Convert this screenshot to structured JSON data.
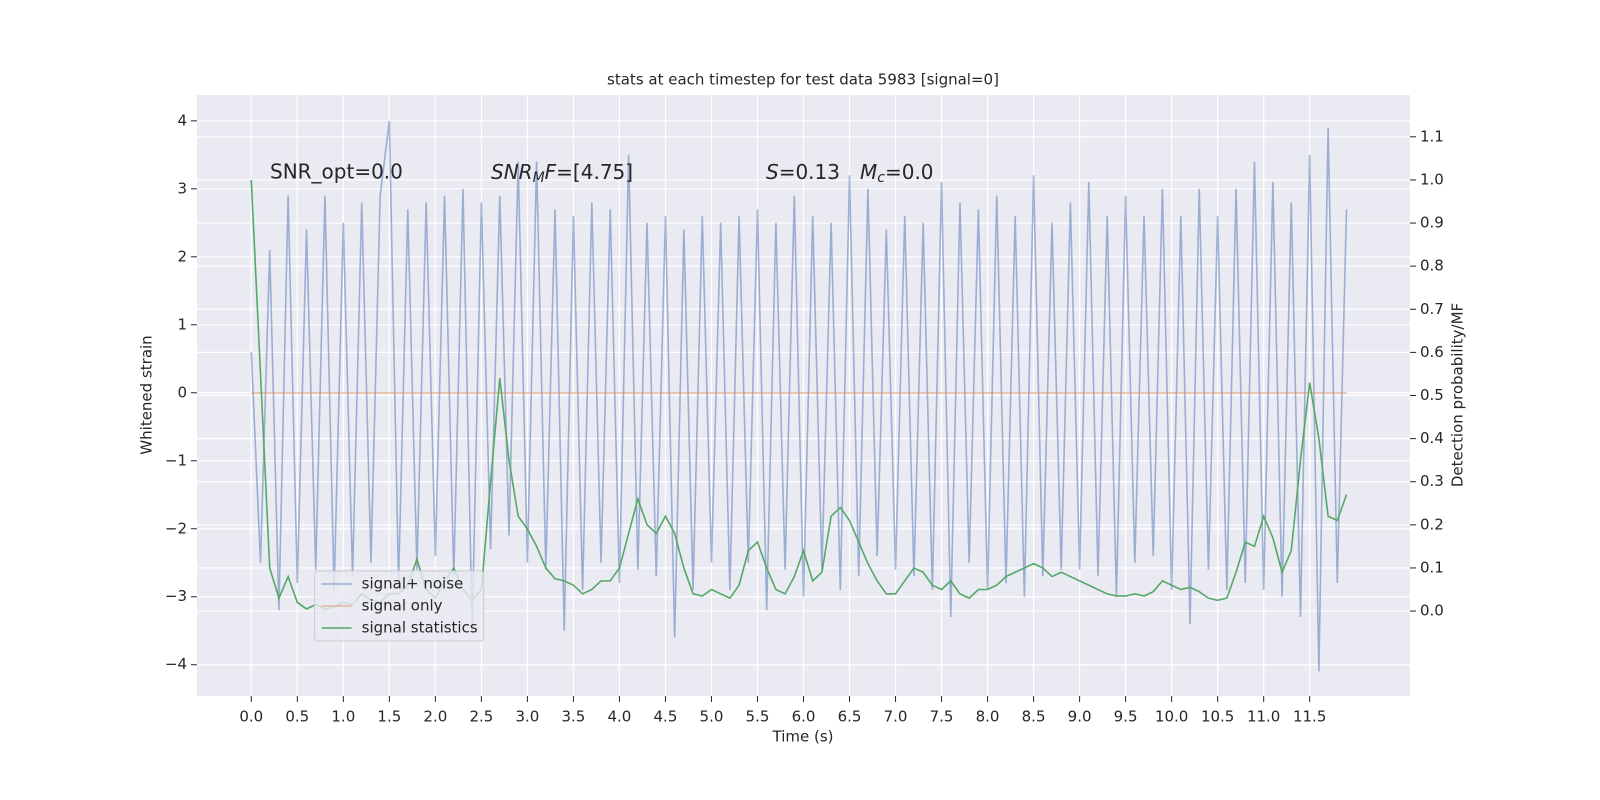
{
  "chart_data": {
    "type": "line",
    "title": "stats at each timestep for test data 5983 [signal=0]",
    "xlabel": "Time (s)",
    "ylabel": "Whitened strain",
    "y2label": "Detection probability/MF",
    "annotations": {
      "snr_opt": "SNR_opt=0.0",
      "snr_mf": [
        "SNR",
        "M",
        "F",
        "=[4.75]"
      ],
      "stats": [
        "S",
        "=0.13",
        "M",
        "c",
        "=0.0"
      ]
    },
    "grid": true,
    "legend": "lower left",
    "xlim": [
      -0.59,
      12.59
    ],
    "ylim": [
      -4.46,
      4.38
    ],
    "y2lim": [
      -0.197,
      1.197
    ],
    "xticks": [
      {
        "value": 0,
        "label": "0.0"
      },
      {
        "value": 0.5,
        "label": "0.5"
      },
      {
        "value": 1,
        "label": "1.0"
      },
      {
        "value": 1.5,
        "label": "1.5"
      },
      {
        "value": 2,
        "label": "2.0"
      },
      {
        "value": 2.5,
        "label": "2.5"
      },
      {
        "value": 3,
        "label": "3.0"
      },
      {
        "value": 3.5,
        "label": "3.5"
      },
      {
        "value": 4,
        "label": "4.0"
      },
      {
        "value": 4.5,
        "label": "4.5"
      },
      {
        "value": 5,
        "label": "5.0"
      },
      {
        "value": 5.5,
        "label": "5.5"
      },
      {
        "value": 6,
        "label": "6.0"
      },
      {
        "value": 6.5,
        "label": "6.5"
      },
      {
        "value": 7,
        "label": "7.0"
      },
      {
        "value": 7.5,
        "label": "7.5"
      },
      {
        "value": 8,
        "label": "8.0"
      },
      {
        "value": 8.5,
        "label": "8.5"
      },
      {
        "value": 9,
        "label": "9.0"
      },
      {
        "value": 9.5,
        "label": "9.5"
      },
      {
        "value": 10,
        "label": "10.0"
      },
      {
        "value": 10.5,
        "label": "10.5"
      },
      {
        "value": 11,
        "label": "11.0"
      },
      {
        "value": 11.5,
        "label": "11.5"
      }
    ],
    "yticks": [
      {
        "value": -4,
        "label": "−4"
      },
      {
        "value": -3,
        "label": "−3"
      },
      {
        "value": -2,
        "label": "−2"
      },
      {
        "value": -1,
        "label": "−1"
      },
      0,
      1,
      2,
      3,
      4
    ],
    "y2ticks": [
      {
        "value": 0,
        "label": "0.0"
      },
      {
        "value": 0.1,
        "label": "0.1"
      },
      {
        "value": 0.2,
        "label": "0.2"
      },
      {
        "value": 0.3,
        "label": "0.3"
      },
      {
        "value": 0.4,
        "label": "0.4"
      },
      {
        "value": 0.5,
        "label": "0.5"
      },
      {
        "value": 0.6,
        "label": "0.6"
      },
      {
        "value": 0.7,
        "label": "0.7"
      },
      {
        "value": 0.8,
        "label": "0.8"
      },
      {
        "value": 0.9,
        "label": "0.9"
      },
      {
        "value": 1,
        "label": "1.0"
      },
      {
        "value": 1.1,
        "label": "1.1"
      }
    ],
    "x": [
      0,
      0.1,
      0.2,
      0.3,
      0.4,
      0.5,
      0.6,
      0.7,
      0.8,
      0.9,
      1,
      1.1,
      1.2,
      1.3,
      1.4,
      1.5,
      1.6,
      1.7,
      1.8,
      1.9,
      2,
      2.1,
      2.2,
      2.3,
      2.4,
      2.5,
      2.6,
      2.7,
      2.8,
      2.9,
      3,
      3.1,
      3.2,
      3.3,
      3.4,
      3.5,
      3.6,
      3.7,
      3.8,
      3.9,
      4,
      4.1,
      4.2,
      4.3,
      4.4,
      4.5,
      4.6,
      4.7,
      4.8,
      4.9,
      5,
      5.1,
      5.2,
      5.3,
      5.4,
      5.5,
      5.6,
      5.7,
      5.8,
      5.9,
      6,
      6.1,
      6.2,
      6.3,
      6.4,
      6.5,
      6.6,
      6.7,
      6.8,
      6.9,
      7,
      7.1,
      7.2,
      7.3,
      7.4,
      7.5,
      7.6,
      7.7,
      7.8,
      7.9,
      8,
      8.1,
      8.2,
      8.3,
      8.4,
      8.5,
      8.6,
      8.7,
      8.8,
      8.9,
      9,
      9.1,
      9.2,
      9.3,
      9.4,
      9.5,
      9.6,
      9.7,
      9.8,
      9.9,
      10,
      10.1,
      10.2,
      10.3,
      10.4,
      10.5,
      10.6,
      10.7,
      10.8,
      10.9,
      11,
      11.1,
      11.2,
      11.3,
      11.4,
      11.5,
      11.6,
      11.7,
      11.8,
      11.9
    ],
    "series": [
      {
        "name": "signal+ noise",
        "color": "#4c72b0",
        "opacity": 0.5,
        "values": [
          0.6,
          -2.5,
          2.1,
          -3.2,
          2.9,
          -2.8,
          2.4,
          -2.6,
          2.9,
          -2.9,
          2.5,
          -2.7,
          2.8,
          -2.5,
          2.9,
          4.0,
          -2.8,
          2.7,
          -2.6,
          2.8,
          -2.4,
          2.9,
          -2.7,
          3.0,
          -3.5,
          2.8,
          -2.3,
          2.9,
          -2.1,
          3.4,
          -2.5,
          3.4,
          -2.6,
          2.7,
          -3.5,
          2.6,
          -2.9,
          2.8,
          -2.5,
          2.7,
          -2.8,
          3.5,
          -2.6,
          2.5,
          -2.7,
          2.6,
          -3.6,
          2.4,
          -2.9,
          2.6,
          -2.5,
          2.5,
          -2.9,
          2.6,
          -2.5,
          2.7,
          -3.2,
          2.5,
          -2.6,
          2.9,
          -3.0,
          2.6,
          -2.6,
          2.5,
          -2.9,
          3.2,
          -2.7,
          3.0,
          -2.4,
          2.4,
          -2.6,
          2.6,
          -2.7,
          2.5,
          -2.9,
          3.1,
          -3.3,
          2.8,
          -2.5,
          2.7,
          -2.9,
          2.9,
          -2.8,
          2.6,
          -3.0,
          3.2,
          -2.7,
          2.5,
          -2.6,
          2.8,
          -2.6,
          3.1,
          -2.7,
          2.6,
          -3.0,
          2.9,
          -2.5,
          2.6,
          -2.4,
          3.0,
          -2.9,
          2.6,
          -3.4,
          3.0,
          -2.6,
          2.6,
          -2.9,
          3.0,
          -2.8,
          3.4,
          -2.9,
          3.1,
          -3.0,
          2.8,
          -3.3,
          3.5,
          -4.1,
          3.9,
          -2.8,
          2.7
        ]
      },
      {
        "name": "signal only",
        "color": "#dd8452",
        "opacity": 0.5,
        "values": [
          0,
          0,
          0,
          0,
          0,
          0,
          0,
          0,
          0,
          0,
          0,
          0,
          0,
          0,
          0,
          0,
          0,
          0,
          0,
          0,
          0,
          0,
          0,
          0,
          0,
          0,
          0,
          0,
          0,
          0,
          0,
          0,
          0,
          0,
          0,
          0,
          0,
          0,
          0,
          0,
          0,
          0,
          0,
          0,
          0,
          0,
          0,
          0,
          0,
          0,
          0,
          0,
          0,
          0,
          0,
          0,
          0,
          0,
          0,
          0,
          0,
          0,
          0,
          0,
          0,
          0,
          0,
          0,
          0,
          0,
          0,
          0,
          0,
          0,
          0,
          0,
          0,
          0,
          0,
          0,
          0,
          0,
          0,
          0,
          0,
          0,
          0,
          0,
          0,
          0,
          0,
          0,
          0,
          0,
          0,
          0,
          0,
          0,
          0,
          0,
          0,
          0,
          0,
          0,
          0,
          0,
          0,
          0,
          0,
          0,
          0,
          0,
          0,
          0,
          0,
          0,
          0,
          0,
          0,
          0
        ]
      },
      {
        "name": "signal statistics",
        "color": "#55a868",
        "opacity": 1,
        "axis": "y2",
        "values": [
          1.0,
          0.55,
          0.1,
          0.03,
          0.08,
          0.02,
          0.005,
          0.015,
          0.005,
          0.01,
          0.02,
          0.015,
          0.04,
          0.025,
          0.02,
          0.04,
          0.04,
          0.06,
          0.12,
          0.05,
          0.03,
          0.07,
          0.1,
          0.05,
          0.025,
          0.05,
          0.3,
          0.54,
          0.35,
          0.22,
          0.19,
          0.15,
          0.1,
          0.075,
          0.07,
          0.06,
          0.04,
          0.05,
          0.07,
          0.07,
          0.1,
          0.18,
          0.26,
          0.2,
          0.18,
          0.22,
          0.18,
          0.1,
          0.04,
          0.035,
          0.05,
          0.04,
          0.03,
          0.06,
          0.14,
          0.16,
          0.1,
          0.05,
          0.04,
          0.08,
          0.14,
          0.07,
          0.09,
          0.22,
          0.24,
          0.21,
          0.16,
          0.11,
          0.07,
          0.04,
          0.04,
          0.07,
          0.1,
          0.09,
          0.06,
          0.05,
          0.07,
          0.04,
          0.03,
          0.05,
          0.05,
          0.06,
          0.08,
          0.09,
          0.1,
          0.11,
          0.1,
          0.08,
          0.09,
          0.08,
          0.07,
          0.06,
          0.05,
          0.04,
          0.035,
          0.035,
          0.04,
          0.035,
          0.045,
          0.07,
          0.06,
          0.05,
          0.055,
          0.045,
          0.03,
          0.025,
          0.03,
          0.09,
          0.16,
          0.15,
          0.22,
          0.17,
          0.09,
          0.14,
          0.35,
          0.53,
          0.4,
          0.22,
          0.21,
          0.27
        ]
      }
    ]
  }
}
